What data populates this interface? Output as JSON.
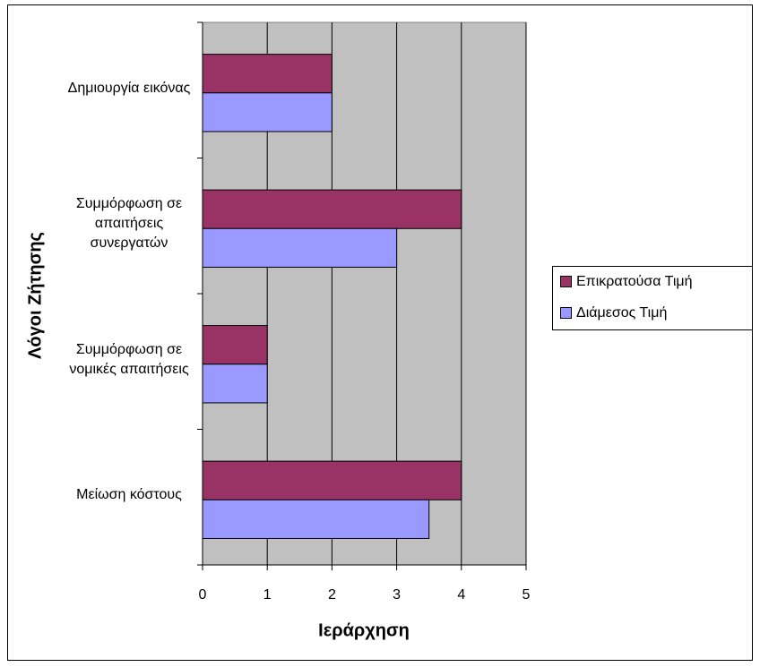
{
  "chart_data": {
    "type": "hbar",
    "x_label": "Ιεράρχηση",
    "y_label": "Λόγοι Ζήτησης",
    "categories": [
      "Δημιουργία εικόνας",
      "Συμμόρφωση σε απαιτήσεις συνεργατών",
      "Συμμόρφωση σε νομικές απαιτήσεις",
      "Μείωση κόστους"
    ],
    "series": [
      {
        "name": "Επικρατούσα Τιμή",
        "color": "#993366",
        "values": [
          2,
          4,
          1,
          4
        ]
      },
      {
        "name": "Διάμεσος Τιμή",
        "color": "#9999ff",
        "values": [
          2,
          3,
          1,
          3.5
        ]
      }
    ],
    "xlim": [
      0,
      5
    ],
    "xticks": [
      0,
      1,
      2,
      3,
      4,
      5
    ],
    "grid": true,
    "legend": "right"
  }
}
